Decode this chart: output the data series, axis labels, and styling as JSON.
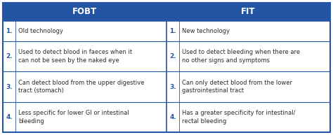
{
  "title_left": "FOBT",
  "title_right": "FIT",
  "header_bg": "#2455a4",
  "header_text_color": "#ffffff",
  "cell_bg": "#ffffff",
  "border_color": "#2455a4",
  "text_color": "#2c2c2c",
  "number_color": "#2455a4",
  "rows_left": [
    "Old technology",
    "Used to detect blood in faeces when it\ncan not be seen by the naked eye",
    "Can detect blood from the upper digestive\ntract (stomach)",
    "Less specific for lower GI or intestinal\nbleeding"
  ],
  "rows_right": [
    "New technology",
    "Used to detect bleeding when there are\nno other signs and symptoms",
    "Can only detect blood from the lower\ngastrointestinal tract",
    "Has a greater specificity for intestinal/\nrectal bleeding"
  ],
  "fig_width": 4.74,
  "fig_height": 1.93,
  "dpi": 100
}
